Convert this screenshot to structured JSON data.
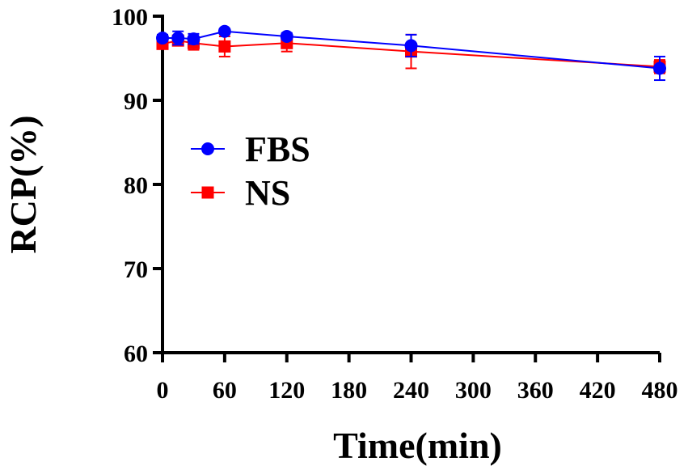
{
  "chart_data": {
    "type": "line",
    "xlabel": "Time(min)",
    "ylabel": "RCP(%)",
    "xlim": [
      0,
      480
    ],
    "ylim": [
      60,
      100
    ],
    "xticks": [
      0,
      60,
      120,
      180,
      240,
      300,
      360,
      420,
      480
    ],
    "yticks": [
      60,
      70,
      80,
      90,
      100
    ],
    "grid": false,
    "legend_position": "left-middle",
    "series": [
      {
        "name": "FBS",
        "color": "#0000ff",
        "marker": "circle",
        "x": [
          0,
          15,
          30,
          60,
          120,
          240,
          480
        ],
        "y": [
          97.4,
          97.4,
          97.3,
          98.2,
          97.6,
          96.5,
          93.8
        ],
        "err": [
          0.4,
          0.8,
          0.6,
          0.3,
          0.4,
          1.3,
          1.4
        ]
      },
      {
        "name": "NS",
        "color": "#ff0000",
        "marker": "square",
        "x": [
          0,
          15,
          30,
          60,
          120,
          240,
          480
        ],
        "y": [
          96.7,
          97.1,
          96.8,
          96.4,
          96.8,
          95.8,
          94.0
        ],
        "err": [
          0.3,
          0.5,
          0.8,
          1.2,
          1.0,
          2.0,
          0.8
        ]
      }
    ]
  }
}
